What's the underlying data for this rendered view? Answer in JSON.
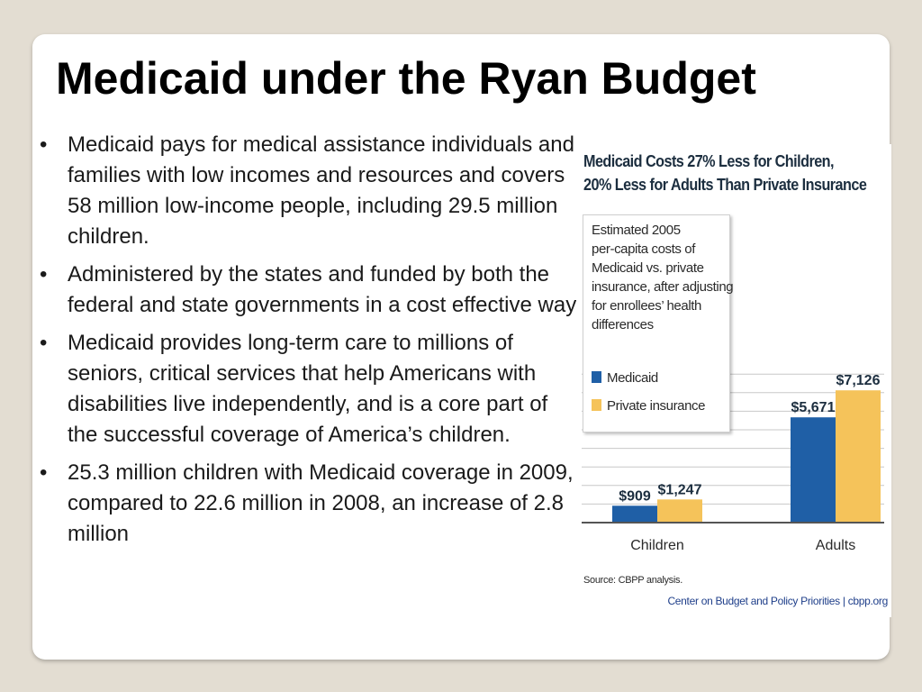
{
  "slide": {
    "title": "Medicaid under the Ryan Budget",
    "bullet_char": "•",
    "bullets": [
      "Medicaid pays for medical assistance individuals and families with low incomes and resources and covers 58 million low-income people, including 29.5 million children.",
      "Administered by the states and funded by both the federal and state governments in a cost effective way",
      "Medicaid provides long-term care to millions of seniors, critical services that help Americans with disabilities live independently, and is a core part of the successful coverage of America’s children.",
      "25.3 million children with Medicaid coverage in 2009, compared to 22.6 million in 2008, an increase of 2.8 million"
    ]
  },
  "chart_data": {
    "type": "bar",
    "title_lines": [
      "Medicaid Costs 27% Less for Children,",
      "20% Less for Adults Than Private Insurance"
    ],
    "note_lines": [
      "Estimated 2005",
      "per-capita costs of",
      "Medicaid vs. private",
      "insurance, after adjusting",
      "for enrollees’ health",
      "differences"
    ],
    "categories": [
      "Children",
      "Adults"
    ],
    "series": [
      {
        "name": "Medicaid",
        "values": [
          909,
          5671
        ],
        "labels": [
          "$909",
          "$5,671"
        ],
        "color": "#1f5fa6"
      },
      {
        "name": "Private insurance",
        "values": [
          1247,
          7126
        ],
        "labels": [
          "$1,247",
          "$7,126"
        ],
        "color": "#f5c35a"
      }
    ],
    "ylim": [
      0,
      8000
    ],
    "grid": true,
    "legend": "top-left",
    "source": "Source: CBPP analysis.",
    "credit": "Center on Budget and Policy Priorities | cbpp.org"
  }
}
